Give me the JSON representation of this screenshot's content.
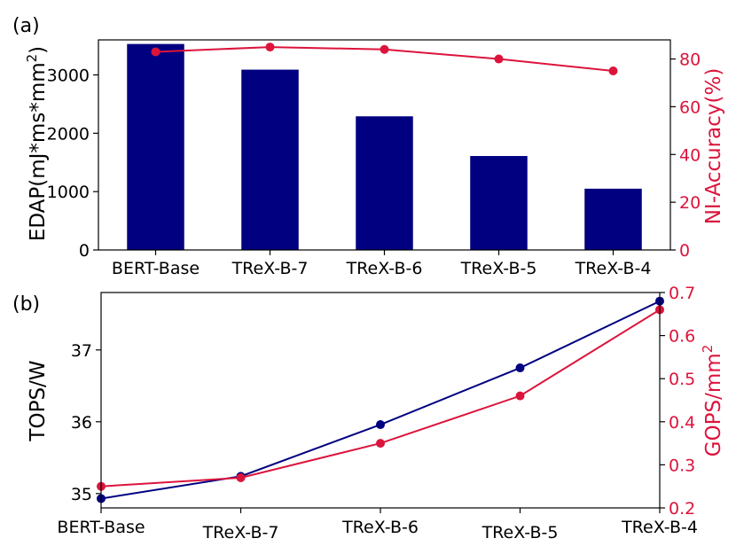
{
  "chart_data": [
    {
      "type": "bar",
      "panel_label": "(a)",
      "categories": [
        "BERT-Base",
        "TReX-B-7",
        "TReX-B-6",
        "TReX-B-5",
        "TReX-B-4"
      ],
      "ylabel_parts": [
        "EDAP(mJ*ms*mm",
        "2",
        ")"
      ],
      "ylim": [
        0,
        3600
      ],
      "yticks": [
        0,
        1000,
        2000,
        3000
      ],
      "series": [
        {
          "name": "EDAP",
          "values": [
            3530,
            3090,
            2290,
            1610,
            1050
          ],
          "color": "#000080"
        }
      ],
      "secondary": {
        "type": "line",
        "ylabel": "NI-Accuracy(%)",
        "ylim": [
          0,
          88
        ],
        "yticks": [
          0,
          20,
          40,
          60,
          80
        ],
        "values": [
          83,
          85,
          84,
          80,
          75
        ],
        "color": "#dc143c"
      }
    },
    {
      "type": "line",
      "panel_label": "(b)",
      "categories": [
        "BERT-Base",
        "TReX-B-7",
        "TReX-B-6",
        "TReX-B-5",
        "TReX-B-4"
      ],
      "ylabel": "TOPS/W",
      "ylim": [
        34.8,
        37.8
      ],
      "yticks": [
        35,
        36,
        37
      ],
      "series": [
        {
          "name": "TOPS/W",
          "values": [
            34.93,
            35.24,
            35.96,
            36.75,
            37.68
          ],
          "color": "#000080"
        }
      ],
      "secondary": {
        "type": "line",
        "ylabel_parts": [
          "GOPS/mm",
          "2",
          ""
        ],
        "ylim": [
          0.2,
          0.7
        ],
        "yticks": [
          "0.2",
          "0.3",
          "0.4",
          "0.5",
          "0.6",
          "0.7"
        ],
        "values": [
          0.25,
          0.27,
          0.35,
          0.46,
          0.66
        ],
        "color": "#dc143c"
      }
    }
  ]
}
